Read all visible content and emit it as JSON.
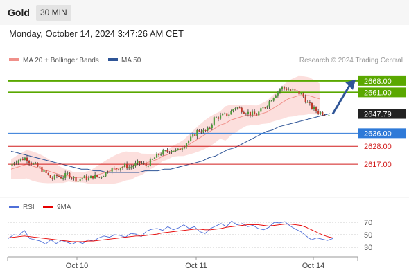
{
  "header": {
    "symbol": "Gold",
    "timeframe": "30 MIN",
    "datetime": "Monday, October 14, 2024 3:47:26 AM CET"
  },
  "legend": {
    "items": [
      {
        "label": "MA 20 + Bollinger Bands",
        "color": "#f0908a"
      },
      {
        "label": "MA 50",
        "color": "#2f5597"
      }
    ],
    "credit": "Research © 2024 Trading Central"
  },
  "chart_data": [
    {
      "type": "candlestick",
      "title": "",
      "ylim": [
        2598,
        2676
      ],
      "x_ticks": [
        "Oct 10",
        "Oct 11",
        "Oct 14"
      ],
      "current_price": {
        "label": "2647.79",
        "value": 2647.79
      },
      "levels": [
        {
          "label": "2668.00",
          "value": 2668.0,
          "color": "#5aa800",
          "style": "badge"
        },
        {
          "label": "2661.00",
          "value": 2661.0,
          "color": "#5aa800",
          "style": "badge"
        },
        {
          "label": "2636.00",
          "value": 2636.0,
          "color": "#2f7ad8",
          "style": "badge"
        },
        {
          "label": "2628.00",
          "value": 2628.0,
          "color": "#d11a1a",
          "style": "text"
        },
        {
          "label": "2617.00",
          "value": 2617.0,
          "color": "#d11a1a",
          "style": "text"
        }
      ],
      "forecast_arrow": {
        "from": 2647.8,
        "to": 2668.0
      },
      "price_path": [
        2616,
        2619,
        2620,
        2621,
        2618,
        2616,
        2614,
        2611,
        2608,
        2610,
        2609,
        2611,
        2609,
        2607,
        2609,
        2608,
        2610,
        2609,
        2611,
        2614,
        2614,
        2615,
        2616,
        2615,
        2617,
        2618,
        2616,
        2619,
        2622,
        2624,
        2625,
        2626,
        2625,
        2628,
        2631,
        2634,
        2638,
        2637,
        2638,
        2645,
        2646,
        2647,
        2648,
        2652,
        2651,
        2649,
        2648,
        2647,
        2650,
        2653,
        2657,
        2661,
        2664,
        2663,
        2662,
        2661,
        2659,
        2654,
        2651,
        2649,
        2648,
        2647.79
      ],
      "ma20_path": [
        2614,
        2615,
        2616,
        2617,
        2616,
        2615,
        2614,
        2613,
        2612,
        2611,
        2610,
        2610,
        2609,
        2609,
        2609,
        2609,
        2610,
        2611,
        2612,
        2613,
        2614,
        2615,
        2616,
        2616,
        2617,
        2617,
        2618,
        2619,
        2620,
        2622,
        2623,
        2625,
        2626,
        2627,
        2629,
        2631,
        2633,
        2635,
        2637,
        2639,
        2641,
        2642,
        2644,
        2645,
        2646,
        2647,
        2647,
        2647,
        2648,
        2649,
        2651,
        2653,
        2655,
        2657,
        2658,
        2659,
        2659,
        2659,
        2658,
        2657
      ],
      "ma50_path": [
        2625,
        2624,
        2623,
        2622,
        2621,
        2620,
        2619,
        2618,
        2617,
        2616,
        2615,
        2614,
        2614,
        2613,
        2613,
        2612,
        2612,
        2612,
        2612,
        2612,
        2612,
        2613,
        2613,
        2613,
        2614,
        2614,
        2615,
        2616,
        2617,
        2618,
        2619,
        2621,
        2622,
        2624,
        2626,
        2627,
        2629,
        2631,
        2633,
        2635,
        2637,
        2638,
        2640,
        2641,
        2642,
        2643,
        2644,
        2645,
        2646,
        2647,
        2648
      ],
      "bollinger_width": 6
    },
    {
      "type": "line",
      "title": "",
      "legend": [
        {
          "label": "RSI",
          "color": "#4f6fd8"
        },
        {
          "label": "9MA",
          "color": "#e60000"
        }
      ],
      "ylim": [
        20,
        80
      ],
      "y_ticks": [
        "70",
        "50",
        "30"
      ],
      "guide_values": [
        70,
        50,
        30
      ],
      "series": [
        {
          "name": "RSI",
          "color": "#4f6fd8",
          "values": [
            44,
            50,
            49,
            57,
            44,
            42,
            40,
            35,
            42,
            36,
            41,
            38,
            35,
            39,
            36,
            42,
            40,
            45,
            48,
            46,
            50,
            49,
            46,
            52,
            51,
            47,
            56,
            59,
            60,
            57,
            63,
            58,
            61,
            66,
            60,
            63,
            55,
            52,
            60,
            64,
            68,
            63,
            72,
            66,
            68,
            63,
            65,
            60,
            58,
            62,
            70,
            69,
            71,
            64,
            59,
            55,
            48,
            42,
            45,
            43,
            41,
            44
          ]
        },
        {
          "name": "9MA",
          "color": "#e60000",
          "values": [
            45,
            46,
            47,
            48,
            47,
            46,
            45,
            44,
            43,
            42,
            41,
            40,
            39,
            39,
            39,
            40,
            40,
            41,
            42,
            43,
            44,
            45,
            46,
            47,
            48,
            48,
            49,
            50,
            51,
            53,
            54,
            55,
            56,
            57,
            58,
            59,
            59,
            58,
            58,
            59,
            60,
            62,
            63,
            64,
            65,
            66,
            66,
            66,
            65,
            64,
            65,
            66,
            67,
            67,
            66,
            65,
            62,
            58,
            54,
            50,
            47,
            45
          ]
        }
      ]
    }
  ]
}
